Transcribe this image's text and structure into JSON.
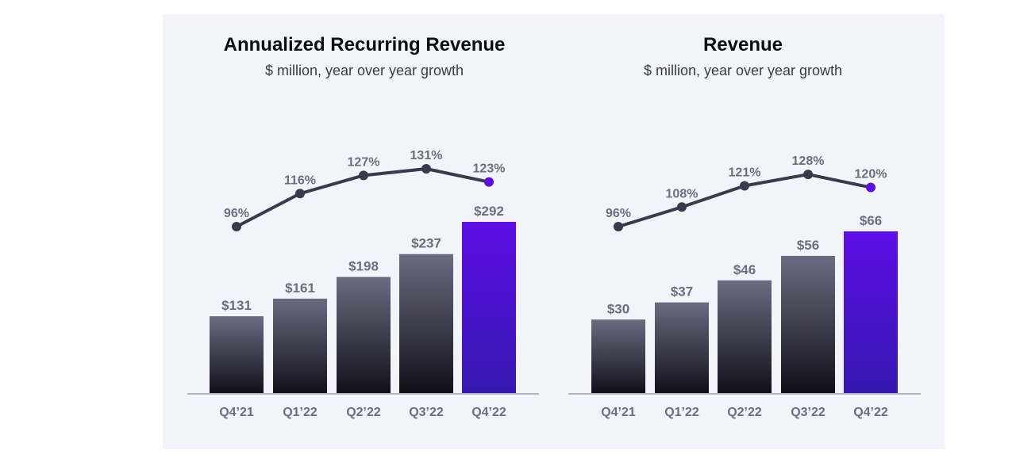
{
  "chart_data": [
    {
      "type": "bar",
      "title": "Annualized Recurring Revenue",
      "subtitle": "$ million, year over year growth",
      "categories": [
        "Q4’21",
        "Q1’22",
        "Q2’22",
        "Q3’22",
        "Q4’22"
      ],
      "values": [
        131,
        161,
        198,
        237,
        292
      ],
      "value_labels": [
        "$131",
        "$161",
        "$198",
        "$237",
        "$292"
      ],
      "growth": [
        96,
        116,
        127,
        131,
        123
      ],
      "growth_labels": [
        "96%",
        "116%",
        "127%",
        "131%",
        "123%"
      ],
      "highlight_color": "#5b0fe0",
      "bar_color": "#2a2a38",
      "line_color": "#3a3a4e",
      "grid": false
    },
    {
      "type": "bar",
      "title": "Revenue",
      "subtitle": "$ million, year over year growth",
      "categories": [
        "Q4’21",
        "Q1’22",
        "Q2’22",
        "Q3’22",
        "Q4’22"
      ],
      "values": [
        30,
        37,
        46,
        56,
        66
      ],
      "value_labels": [
        "$30",
        "$37",
        "$46",
        "$56",
        "$66"
      ],
      "growth": [
        96,
        108,
        121,
        128,
        120
      ],
      "growth_labels": [
        "96%",
        "108%",
        "121%",
        "128%",
        "120%"
      ],
      "highlight_color": "#5b0fe0",
      "bar_color": "#2a2a38",
      "line_color": "#3a3a4e",
      "grid": false
    }
  ]
}
